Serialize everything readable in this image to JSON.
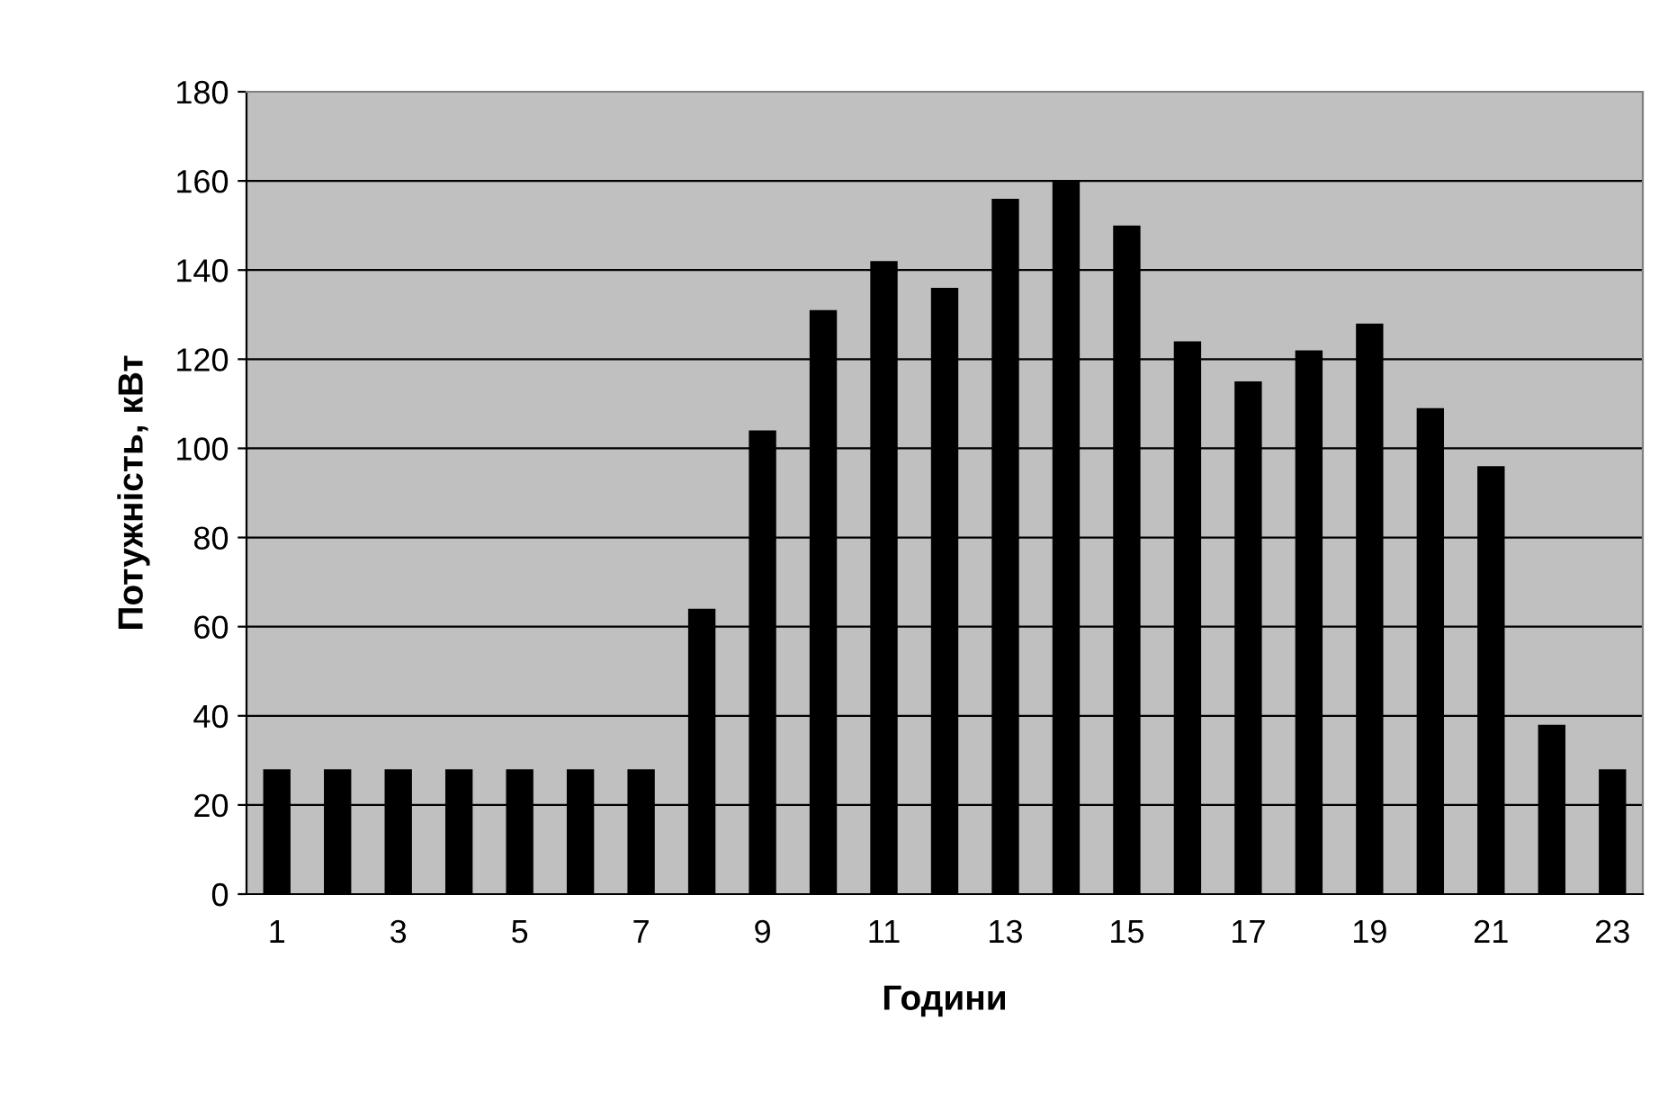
{
  "chart_data": {
    "type": "bar",
    "xlabel": "Години",
    "ylabel": "Потужність, кВт",
    "categories": [
      "1",
      null,
      "3",
      null,
      "5",
      null,
      "7",
      null,
      "9",
      null,
      "11",
      null,
      "13",
      null,
      "15",
      null,
      "17",
      null,
      "19",
      null,
      "21",
      null,
      "23"
    ],
    "values": [
      28,
      28,
      28,
      28,
      28,
      28,
      28,
      64,
      104,
      131,
      142,
      136,
      156,
      160,
      150,
      124,
      115,
      122,
      128,
      109,
      96,
      38,
      28
    ],
    "color": "#000000",
    "ylim": [
      0,
      180
    ],
    "yticks": [
      0,
      20,
      40,
      60,
      80,
      100,
      120,
      140,
      160,
      180
    ],
    "grid": "y"
  }
}
